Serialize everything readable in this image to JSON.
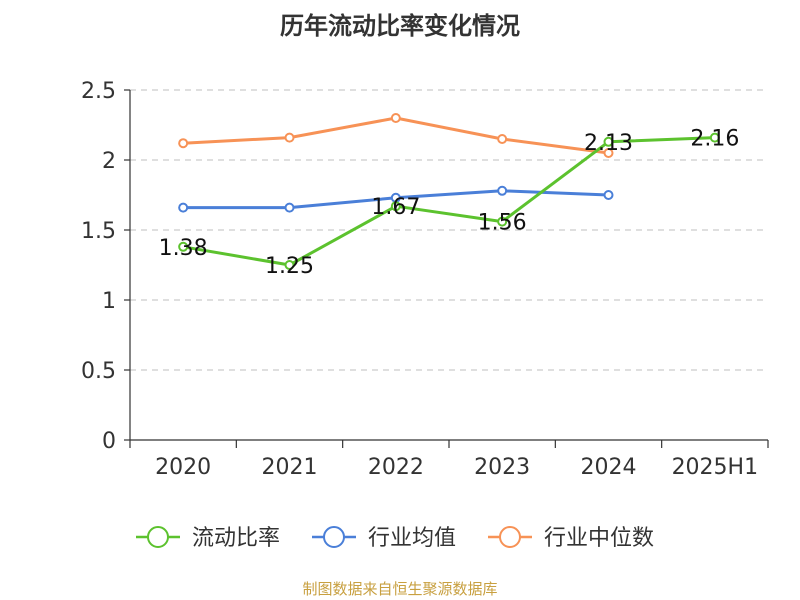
{
  "chart_data": {
    "type": "line",
    "title": "历年流动比率变化情况",
    "categories": [
      "2020",
      "2021",
      "2022",
      "2023",
      "2024",
      "2025H1"
    ],
    "ylim": [
      0,
      2.5
    ],
    "yticks": [
      "0",
      "0.5",
      "1",
      "1.5",
      "2",
      "2.5"
    ],
    "grid": true,
    "legend_position": "bottom",
    "series": [
      {
        "name": "流动比率",
        "color": "#5cc22e",
        "values": [
          1.38,
          1.25,
          1.67,
          1.56,
          2.13,
          2.16
        ],
        "labels": [
          "1.38",
          "1.25",
          "1.67",
          "1.56",
          "2.13",
          "2.16"
        ]
      },
      {
        "name": "行业均值",
        "color": "#4a7fd8",
        "values": [
          1.66,
          1.66,
          1.73,
          1.78,
          1.75,
          null
        ]
      },
      {
        "name": "行业中位数",
        "color": "#f79256",
        "values": [
          2.12,
          2.16,
          2.3,
          2.15,
          2.05,
          null
        ]
      }
    ]
  },
  "footer": {
    "source": "制图数据来自恒生聚源数据库"
  }
}
